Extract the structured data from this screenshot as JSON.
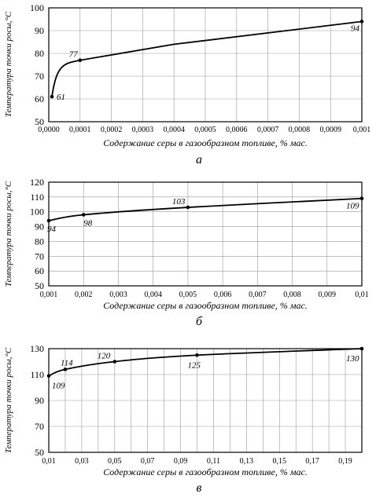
{
  "chart_data": [
    {
      "type": "line",
      "panel_label": "а",
      "xlabel": "Содержание серы в газообразном топливе, % мас.",
      "ylabel": "Температура точки росы,°С",
      "xlim": [
        0,
        0.001
      ],
      "ylim": [
        50,
        100
      ],
      "x_ticks": [
        "0,0000",
        "0,0001",
        "0,0002",
        "0,0003",
        "0,0004",
        "0,0005",
        "0,0006",
        "0,0007",
        "0,0008",
        "0,0009",
        "0,001"
      ],
      "y_ticks": [
        "50",
        "60",
        "70",
        "80",
        "90",
        "100"
      ],
      "grid": true,
      "series": [
        {
          "x": [
            1e-05,
            0.0001,
            0.001
          ],
          "y": [
            61,
            77,
            94
          ],
          "labels": [
            "61",
            "77",
            "94"
          ]
        }
      ]
    },
    {
      "type": "line",
      "panel_label": "б",
      "xlabel": "Содержание серы в газообразном топливе, % мас.",
      "ylabel": "Температура точки росы,°С",
      "xlim": [
        0.001,
        0.01
      ],
      "ylim": [
        50,
        120
      ],
      "x_ticks": [
        "0,001",
        "0,002",
        "0,003",
        "0,004",
        "0,005",
        "0,006",
        "0,007",
        "0,008",
        "0,009",
        "0,01"
      ],
      "y_ticks": [
        "50",
        "60",
        "70",
        "80",
        "90",
        "100",
        "110",
        "120"
      ],
      "grid": true,
      "series": [
        {
          "x": [
            0.001,
            0.002,
            0.005,
            0.01
          ],
          "y": [
            94,
            98,
            103,
            109
          ],
          "labels": [
            "94",
            "98",
            "103",
            "109"
          ]
        }
      ]
    },
    {
      "type": "line",
      "panel_label": "в",
      "xlabel": "Содержание серы в газообразном топливе, % мас.",
      "ylabel": "Температура точки росы,°С",
      "xlim": [
        0.01,
        0.2
      ],
      "ylim": [
        50,
        130
      ],
      "x_ticks": [
        "0,01",
        "0,03",
        "0,05",
        "0,07",
        "0,09",
        "0,11",
        "0,13",
        "0,15",
        "0,17",
        "0,19"
      ],
      "y_ticks": [
        "50",
        "70",
        "90",
        "110",
        "130"
      ],
      "grid": true,
      "series": [
        {
          "x": [
            0.01,
            0.02,
            0.05,
            0.1,
            0.2
          ],
          "y": [
            109,
            114,
            120,
            125,
            130
          ],
          "labels": [
            "109",
            "114",
            "120",
            "125",
            "130"
          ]
        }
      ]
    }
  ]
}
